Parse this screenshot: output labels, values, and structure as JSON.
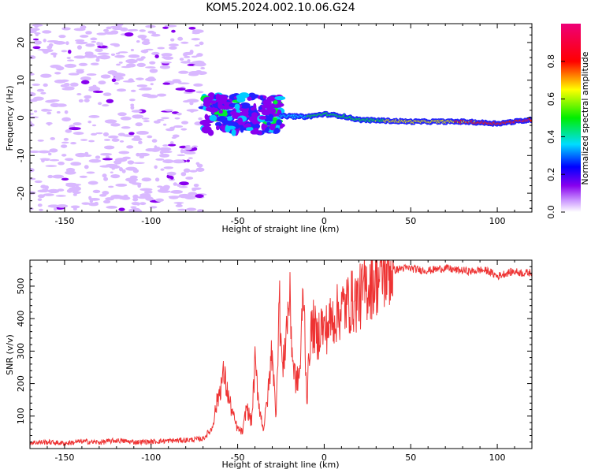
{
  "figure": {
    "title": "KOM5.2024.002.10.06.G24"
  },
  "chart_data": [
    {
      "type": "heatmap",
      "xlabel": "Height of straight line (km)",
      "ylabel": "Frequency (Hz)",
      "xlim": [
        -170,
        120
      ],
      "ylim": [
        -25,
        25
      ],
      "xticks": [
        -150,
        -100,
        -50,
        0,
        50,
        100
      ],
      "yticks": [
        -20,
        -10,
        0,
        10,
        20
      ],
      "colorbar": {
        "label": "Normalized spectral amplitude",
        "range": [
          0,
          1
        ],
        "ticks": [
          0.0,
          0.2,
          0.4,
          0.6,
          0.8
        ],
        "colormap": "rainbow (white, violet, blue, cyan, green, yellow, red, magenta)"
      },
      "features": [
        {
          "name": "noise",
          "x_range": [
            -170,
            -70
          ],
          "y_range": [
            -25,
            25
          ],
          "amplitude": 0.05
        },
        {
          "name": "onset cluster",
          "x_range": [
            -70,
            -25
          ],
          "y_range": [
            -4,
            6
          ],
          "amplitude": 0.25
        },
        {
          "name": "carrier line",
          "points": [
            [
              -25,
              0.5
            ],
            [
              -10,
              0.3
            ],
            [
              0,
              1.0
            ],
            [
              10,
              0.5
            ],
            [
              20,
              -0.5
            ],
            [
              50,
              -1.0
            ],
            [
              80,
              -1.0
            ],
            [
              100,
              -1.5
            ],
            [
              120,
              -0.5
            ]
          ],
          "amplitude_range": [
            0.3,
            1.0
          ]
        }
      ]
    },
    {
      "type": "line",
      "xlabel": "Height of straight line (km)",
      "ylabel": "SNR (v/v)",
      "xlim": [
        -170,
        120
      ],
      "ylim": [
        0,
        580
      ],
      "xticks": [
        -150,
        -100,
        -50,
        0,
        50,
        100
      ],
      "yticks": [
        100,
        200,
        300,
        400,
        500
      ],
      "color": "#ee3333",
      "series": [
        {
          "x": [
            -170,
            -160,
            -150,
            -140,
            -130,
            -120,
            -110,
            -100,
            -90,
            -80,
            -70,
            -65,
            -62,
            -60,
            -58,
            -55,
            -52,
            -50,
            -47,
            -45,
            -42,
            -40,
            -37,
            -35,
            -32,
            -30,
            -28,
            -26,
            -24,
            -22,
            -20,
            -18,
            -16,
            -14,
            -12,
            -10,
            -8,
            -6,
            -4,
            -2,
            0,
            5,
            10,
            15,
            20,
            25,
            30,
            35,
            40,
            45,
            50,
            55,
            60,
            65,
            70,
            75,
            80,
            85,
            90,
            95,
            100,
            105,
            110,
            115,
            120
          ],
          "y": [
            18,
            20,
            16,
            22,
            19,
            25,
            20,
            21,
            24,
            26,
            30,
            60,
            140,
            190,
            230,
            150,
            90,
            60,
            50,
            130,
            80,
            260,
            110,
            60,
            190,
            320,
            90,
            460,
            230,
            360,
            470,
            260,
            200,
            240,
            500,
            150,
            350,
            380,
            330,
            390,
            360,
            400,
            430,
            450,
            460,
            500,
            520,
            540,
            548,
            555,
            555,
            550,
            548,
            552,
            556,
            550,
            548,
            545,
            550,
            546,
            530,
            540,
            545,
            540,
            542
          ]
        }
      ]
    }
  ]
}
